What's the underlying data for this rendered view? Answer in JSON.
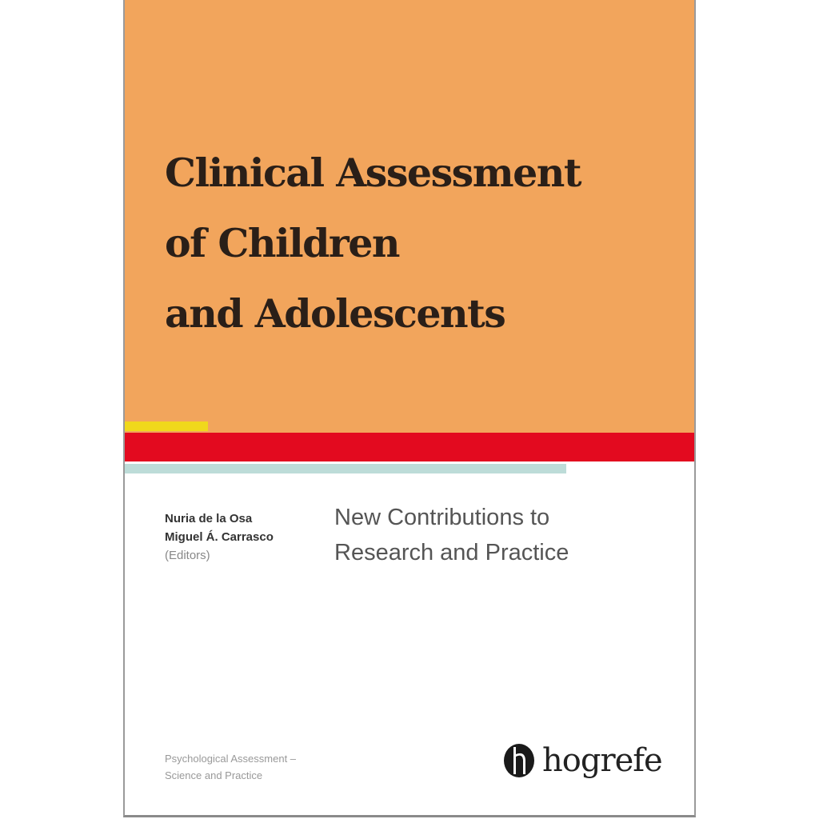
{
  "book": {
    "title_lines": [
      "Clinical Assessment",
      "of Children",
      "and Adolescents"
    ],
    "subtitle_lines": [
      "New Contributions to",
      "Research and Practice"
    ],
    "editors": [
      "Nuria de la Osa",
      "Miguel Á. Carrasco"
    ],
    "editors_role": "(Editors)",
    "series_lines": [
      "Psychological Assessment –",
      "Science and Practice"
    ],
    "publisher": "hogrefe"
  },
  "colors": {
    "cover_orange": "#f2a55c",
    "accent_yellow": "#f0d81c",
    "accent_red": "#e30a1f",
    "accent_teal": "#bddcd8"
  },
  "icons": {
    "publisher_logo": "hogrefe-hp-logo"
  }
}
